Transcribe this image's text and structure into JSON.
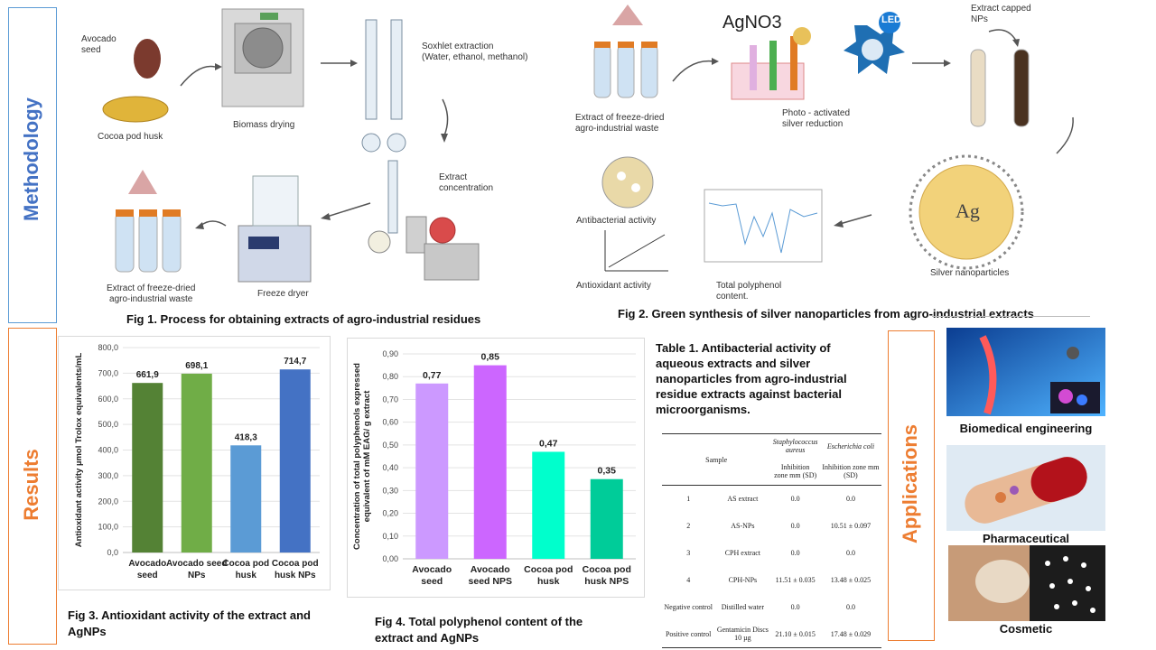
{
  "sections": {
    "methodology": "Methodology",
    "results": "Results",
    "applications": "Applications"
  },
  "fig1": {
    "avocado_seed": "Avocado\nseed",
    "cocoa_pod_husk": "Cocoa pod husk",
    "biomass_drying": "Biomass drying",
    "soxhlet": "Soxhlet extraction\n(Water, ethanol, methanol)",
    "extract_concentration": "Extract\nconcentration",
    "freeze_dryer": "Freeze dryer",
    "extract_freeze_dried": "Extract of freeze-dried\nagro-industrial waste",
    "caption": "Fig 1. Process for obtaining extracts of agro-industrial residues"
  },
  "fig2": {
    "extract_freeze_dried": "Extract of freeze-dried\nagro-industrial waste",
    "agno3": "AgNO3",
    "led": "LED",
    "photo_activated": "Photo - activated\nsilver reduction",
    "extract_capped": "Extract capped\nNPs",
    "silver_nanoparticles": "Silver nanoparticles",
    "ag": "Ag",
    "antibacterial": "Antibacterial activity",
    "antioxidant": "Antioxidant activity",
    "total_polyphenol": "Total polyphenol\ncontent.",
    "caption": "Fig 2. Green synthesis of silver nanoparticles from agro-industrial extracts"
  },
  "chart_data": [
    {
      "type": "bar",
      "ylabel": "Antioxidant activity µmol Trolox equivalents/mL",
      "categories": [
        "Avocado\nseed",
        "Avocado seed\nNPs",
        "Cocoa pod\nhusk",
        "Cocoa pod\nhusk NPs"
      ],
      "values": [
        661.9,
        698.1,
        418.3,
        714.7
      ],
      "value_labels": [
        "661,9",
        "698,1",
        "418,3",
        "714,7"
      ],
      "ylim": [
        0,
        800
      ],
      "yticks": [
        "0,0",
        "100,0",
        "200,0",
        "300,0",
        "400,0",
        "500,0",
        "600,0",
        "700,0",
        "800,0"
      ],
      "colors": [
        "#548235",
        "#70ad47",
        "#5b9bd5",
        "#4472c4"
      ],
      "caption": "Fig 3. Antioxidant activity of the extract and\nAgNPs"
    },
    {
      "type": "bar",
      "ylabel": "Concentration of total polyphenols expressed\nequivalent of mM EAG/ g extract",
      "categories": [
        "Avocado\nseed",
        "Avocado\nseed NPS",
        "Cocoa pod\nhusk",
        "Cocoa pod\nhusk NPS"
      ],
      "values": [
        0.77,
        0.85,
        0.47,
        0.35
      ],
      "value_labels": [
        "0,77",
        "0,85",
        "0,47",
        "0,35"
      ],
      "ylim": [
        0,
        0.9
      ],
      "yticks": [
        "0,00",
        "0,10",
        "0,20",
        "0,30",
        "0,40",
        "0,50",
        "0,60",
        "0,70",
        "0,80",
        "0,90"
      ],
      "colors": [
        "#cc99ff",
        "#cc66ff",
        "#00ffcc",
        "#00cc99"
      ],
      "caption": "Fig 4. Total polyphenol content of the\nextract and AgNPs"
    }
  ],
  "table1": {
    "caption": "Table 1. Antibacterial activity of\naqueous extracts and silver\nnanoparticles from agro-industrial\nresidue extracts against bacterial\nmicroorganisms.",
    "h_sample": "Sample",
    "h_staph": "Staphylococcus\naureus",
    "h_ecoli": "Escherichia coli",
    "h_zone": "Inhibition\nzone mm (SD)",
    "h_zone2": "Inhibition zone mm\n(SD)",
    "rows": [
      [
        "1",
        "AS extract",
        "0.0",
        "0.0"
      ],
      [
        "2",
        "AS-NPs",
        "0.0",
        "10.51 ± 0.097"
      ],
      [
        "3",
        "CPH extract",
        "0.0",
        "0.0"
      ],
      [
        "4",
        "CPH-NPs",
        "11.51 ± 0.035",
        "13.48 ± 0.025"
      ],
      [
        "Negative control",
        "Distilled water",
        "0.0",
        "0.0"
      ],
      [
        "Positive control",
        "Gentamicin Discs\n10 µg",
        "21.10 ± 0.015",
        "17.48 ± 0.029"
      ]
    ]
  },
  "applications": {
    "biomedical": "Biomedical engineering",
    "pharmaceutical": "Pharmaceutical",
    "cosmetic": "Cosmetic"
  },
  "colors": {
    "blue_section": "#4472c4",
    "orange_section": "#ed7d31"
  }
}
